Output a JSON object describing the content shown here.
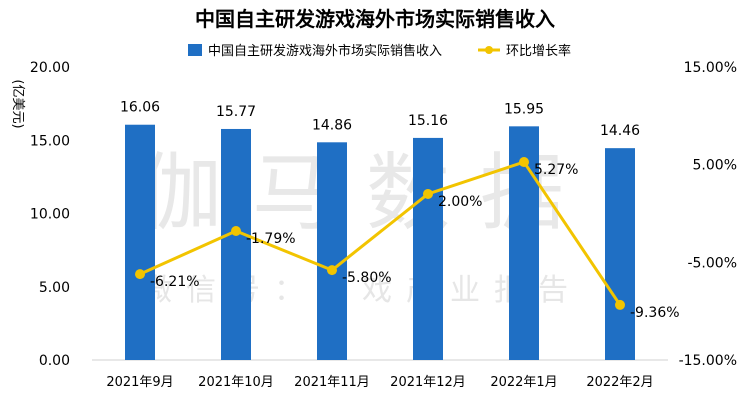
{
  "chart_data": {
    "type": "bar",
    "title": "中国自主研发游戏海外市场实际销售收入",
    "ylabel": "(亿美元)",
    "categories": [
      "2021年9月",
      "2021年10月",
      "2021年11月",
      "2021年12月",
      "2022年1月",
      "2022年2月"
    ],
    "series": [
      {
        "name": "中国自主研发游戏海外市场实际销售收入",
        "type": "bar",
        "axis": "left",
        "values": [
          16.06,
          15.77,
          14.86,
          15.16,
          15.95,
          14.46
        ],
        "labels": [
          "16.06",
          "15.77",
          "14.86",
          "15.16",
          "15.95",
          "14.46"
        ]
      },
      {
        "name": "环比增长率",
        "type": "line",
        "axis": "right",
        "values": [
          -6.21,
          -1.79,
          -5.8,
          2.0,
          5.27,
          -9.36
        ],
        "labels": [
          "-6.21%",
          "-1.79%",
          "-5.80%",
          "2.00%",
          "5.27%",
          "-9.36%"
        ]
      }
    ],
    "left_axis": {
      "range": [
        0,
        20
      ],
      "ticks": [
        "0.00",
        "5.00",
        "10.00",
        "15.00",
        "20.00"
      ],
      "tick_values": [
        0,
        5,
        10,
        15,
        20
      ]
    },
    "right_axis": {
      "range": [
        -15,
        15
      ],
      "ticks": [
        "-15.00%",
        "-5.00%",
        "5.00%",
        "15.00%"
      ],
      "tick_values": [
        -15,
        -5,
        5,
        15
      ]
    },
    "legend_position": "top-center"
  },
  "colors": {
    "bar": "#1f6fc4",
    "line": "#f2c400",
    "axis": "#d0d0d0"
  },
  "watermark": {
    "main": "伽马数据",
    "sub": "微信号：游戏产业报告"
  }
}
